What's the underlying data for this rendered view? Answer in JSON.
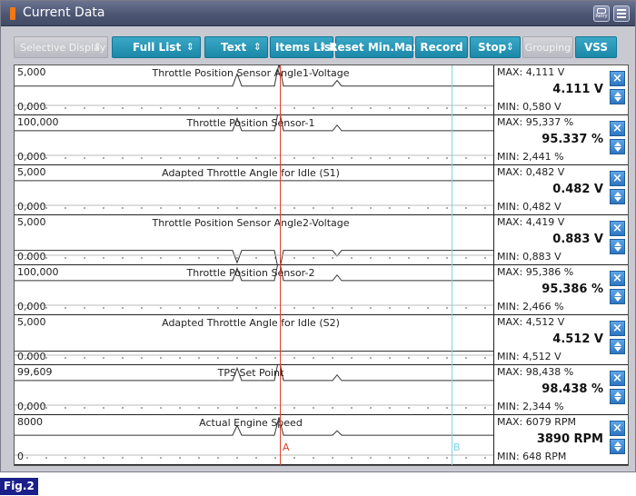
{
  "window": {
    "title": "Current Data",
    "retry_label": "Retry",
    "accent_color": "#1b88a8"
  },
  "toolbar": {
    "buttons": [
      {
        "label": "Selective Display",
        "updown": "⇕",
        "enabled": false
      },
      {
        "label": "Full List",
        "updown": "⇕",
        "enabled": true
      },
      {
        "label": "Text",
        "updown": "⇕",
        "enabled": true
      },
      {
        "label": "Items List",
        "updown": "⇕",
        "enabled": true
      },
      {
        "label": "Reset Min.Max",
        "enabled": true
      },
      {
        "label": "Record",
        "enabled": true
      },
      {
        "label": "Stop",
        "updown": "⇕",
        "enabled": true
      },
      {
        "label": "Grouping",
        "enabled": false
      },
      {
        "label": "VSS",
        "enabled": true
      }
    ]
  },
  "rows": [
    {
      "name": "Throttle Position Sensor Angle1-Voltage",
      "scale_max": "5,000",
      "scale_min": "0,000",
      "max": "MAX: 4,111 V",
      "current": "4.111 V",
      "min": "MIN: 0,580 V",
      "baseline": 0.7,
      "spike": 1.0,
      "invert": false
    },
    {
      "name": "Throttle Position Sensor-1",
      "scale_max": "100,000",
      "scale_min": "0,000",
      "max": "MAX: 95,337 %",
      "current": "95.337 %",
      "min": "MIN: 2,441 %",
      "baseline": 0.9,
      "spike": 1.0,
      "invert": false
    },
    {
      "name": "Adapted Throttle Angle for Idle (S1)",
      "scale_max": "5,000",
      "scale_min": "0,000",
      "max": "MAX: 0,482 V",
      "current": "0.482 V",
      "min": "MIN: 0,482 V",
      "baseline": 0.9,
      "spike": 0.0,
      "invert": false
    },
    {
      "name": "Throttle Position Sensor Angle2-Voltage",
      "scale_max": "5,000",
      "scale_min": "0.000",
      "max": "MAX: 4,419 V",
      "current": "0.883 V",
      "min": "MIN: 0,883 V",
      "baseline": 0.15,
      "spike": 1.0,
      "invert": true
    },
    {
      "name": "Throttle Position Sensor-2",
      "scale_max": "100,000",
      "scale_min": "0,000",
      "max": "MAX: 95,386 %",
      "current": "95.386 %",
      "min": "MIN: 2,466 %",
      "baseline": 0.9,
      "spike": 1.0,
      "invert": false
    },
    {
      "name": "Adapted Throttle Angle for Idle (S2)",
      "scale_max": "5,000",
      "scale_min": "0.000",
      "max": "MAX: 4,512 V",
      "current": "4.512 V",
      "min": "MIN: 4,512 V",
      "baseline": 0.12,
      "spike": 0.0,
      "invert": false
    },
    {
      "name": "TPS Set Point",
      "scale_max": "99,609",
      "scale_min": "0,000",
      "max": "MAX: 98,438 %",
      "current": "98.438 %",
      "min": "MIN: 2,344 %",
      "baseline": 0.9,
      "spike": 1.0,
      "invert": false
    },
    {
      "name": "Actual Engine Speed",
      "scale_max": "8000",
      "scale_min": "0",
      "max": "MAX:   6079 RPM",
      "current": "3890 RPM",
      "min": "MIN:   648 RPM",
      "baseline": 0.72,
      "spike": 0.8,
      "invert": false
    }
  ],
  "cursors": {
    "a_label": "A",
    "b_label": "B",
    "a_color": "#e0402a",
    "b_color": "#7dd6e6"
  },
  "figure_label": "Fig.2"
}
